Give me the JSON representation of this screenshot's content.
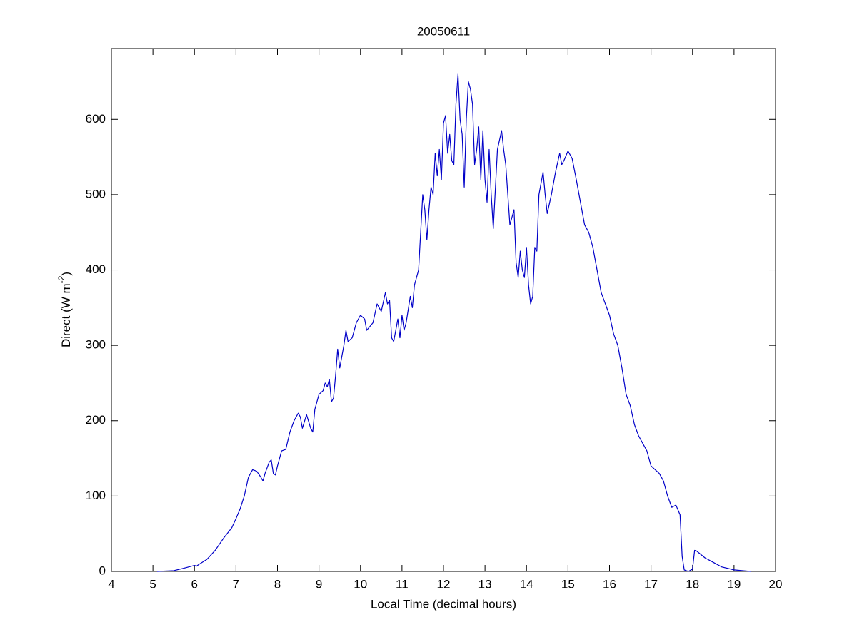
{
  "chart_data": {
    "type": "line",
    "title": "20050611",
    "xlabel": "Local Time (decimal hours)",
    "ylabel": {
      "text": "Direct (W m",
      "superscript": "-2",
      "suffix": ")"
    },
    "color": "#0000c8",
    "xlim": [
      4,
      20
    ],
    "xticks": [
      4,
      5,
      6,
      7,
      8,
      9,
      10,
      11,
      12,
      13,
      14,
      15,
      16,
      17,
      18,
      19,
      20
    ],
    "ylim": [
      0,
      694
    ],
    "yticks": [
      0,
      100,
      200,
      300,
      400,
      500,
      600
    ],
    "x": [
      5.1,
      5.5,
      5.8,
      6.0,
      6.05,
      6.1,
      6.3,
      6.5,
      6.7,
      6.9,
      7.0,
      7.1,
      7.2,
      7.3,
      7.4,
      7.5,
      7.6,
      7.65,
      7.7,
      7.8,
      7.85,
      7.9,
      7.95,
      8.0,
      8.1,
      8.2,
      8.3,
      8.4,
      8.5,
      8.55,
      8.6,
      8.7,
      8.8,
      8.85,
      8.9,
      9.0,
      9.1,
      9.15,
      9.2,
      9.25,
      9.3,
      9.35,
      9.4,
      9.45,
      9.5,
      9.6,
      9.65,
      9.7,
      9.8,
      9.9,
      10.0,
      10.1,
      10.15,
      10.3,
      10.4,
      10.5,
      10.6,
      10.65,
      10.7,
      10.75,
      10.8,
      10.85,
      10.9,
      10.95,
      11.0,
      11.05,
      11.1,
      11.2,
      11.25,
      11.3,
      11.4,
      11.5,
      11.55,
      11.6,
      11.65,
      11.7,
      11.75,
      11.8,
      11.85,
      11.9,
      11.95,
      12.0,
      12.05,
      12.1,
      12.15,
      12.2,
      12.25,
      12.3,
      12.35,
      12.4,
      12.45,
      12.5,
      12.55,
      12.6,
      12.65,
      12.7,
      12.75,
      12.8,
      12.85,
      12.9,
      12.95,
      13.0,
      13.05,
      13.1,
      13.15,
      13.2,
      13.3,
      13.4,
      13.45,
      13.5,
      13.6,
      13.7,
      13.75,
      13.8,
      13.85,
      13.9,
      13.95,
      14.0,
      14.05,
      14.1,
      14.15,
      14.2,
      14.25,
      14.3,
      14.4,
      14.45,
      14.5,
      14.6,
      14.7,
      14.8,
      14.85,
      14.9,
      15.0,
      15.1,
      15.2,
      15.3,
      15.4,
      15.5,
      15.6,
      15.7,
      15.8,
      15.9,
      16.0,
      16.1,
      16.2,
      16.3,
      16.4,
      16.5,
      16.6,
      16.7,
      16.8,
      16.9,
      17.0,
      17.1,
      17.2,
      17.3,
      17.4,
      17.5,
      17.6,
      17.7,
      17.75,
      17.8,
      17.9,
      18.0,
      18.05,
      18.1,
      18.3,
      18.5,
      18.7,
      19.0,
      19.4
    ],
    "values": [
      0,
      1,
      5,
      8,
      7,
      9,
      16,
      28,
      44,
      58,
      70,
      83,
      100,
      125,
      135,
      133,
      125,
      120,
      130,
      145,
      148,
      130,
      128,
      140,
      160,
      162,
      185,
      200,
      210,
      205,
      190,
      208,
      190,
      185,
      215,
      235,
      240,
      250,
      245,
      255,
      225,
      230,
      260,
      295,
      270,
      300,
      320,
      305,
      310,
      330,
      340,
      335,
      320,
      330,
      355,
      345,
      370,
      355,
      360,
      310,
      305,
      320,
      335,
      310,
      340,
      320,
      330,
      365,
      350,
      380,
      400,
      500,
      480,
      440,
      480,
      510,
      500,
      555,
      525,
      560,
      520,
      595,
      605,
      555,
      580,
      545,
      540,
      620,
      660,
      600,
      580,
      510,
      600,
      650,
      640,
      620,
      540,
      560,
      590,
      520,
      585,
      520,
      490,
      560,
      500,
      455,
      560,
      585,
      560,
      540,
      460,
      480,
      410,
      390,
      425,
      400,
      390,
      430,
      380,
      355,
      365,
      430,
      425,
      500,
      530,
      500,
      475,
      500,
      530,
      555,
      540,
      545,
      558,
      548,
      520,
      490,
      460,
      450,
      430,
      400,
      370,
      355,
      340,
      315,
      300,
      270,
      235,
      220,
      195,
      180,
      170,
      160,
      140,
      135,
      130,
      120,
      100,
      85,
      88,
      75,
      20,
      2,
      0,
      3,
      28,
      27,
      18,
      12,
      6,
      2,
      0
    ]
  }
}
